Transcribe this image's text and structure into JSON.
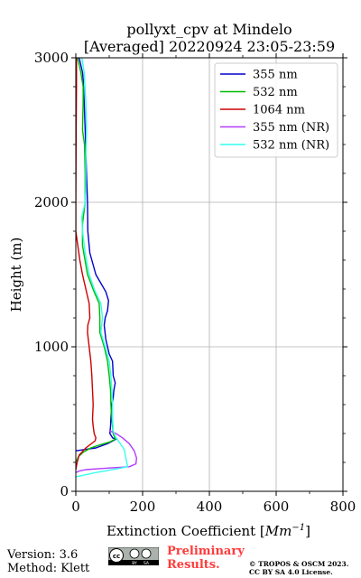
{
  "title_line1": "pollyxt_cpv at Mindelo",
  "title_line2": "[Averaged] 20220924 23:05-23:59",
  "footer": {
    "version": "Version: 3.6",
    "method": "Method: Klett",
    "cc_badge": "cc",
    "cc_by": "BY",
    "cc_sa": "SA",
    "preliminary_line1": "Preliminary",
    "preliminary_line2": "Results.",
    "preliminary_color": "#ff3b3b",
    "copyright_line1": "© TROPOS & OSCM 2023.",
    "copyright_line2": "CC BY SA 4.0 License."
  },
  "chart_data": {
    "type": "line",
    "xlabel_prefix": "Extinction Coefficient [",
    "xlabel_unit": "Mm",
    "xlabel_exp": "−1",
    "xlabel_suffix": "]",
    "ylabel": "Height (m)",
    "xlim": [
      0,
      800
    ],
    "ylim": [
      0,
      3000
    ],
    "xticks": [
      0,
      200,
      400,
      600,
      800
    ],
    "yticks": [
      0,
      1000,
      2000,
      3000
    ],
    "x_minor_step": 100,
    "y_minor_step": 200,
    "grid": true,
    "legend_position": "top-right",
    "series": [
      {
        "name": "355 nm",
        "color": "#0000cc",
        "points": [
          [
            10,
            3000
          ],
          [
            14,
            2960
          ],
          [
            20,
            2900
          ],
          [
            22,
            2850
          ],
          [
            23,
            2800
          ],
          [
            25,
            2700
          ],
          [
            28,
            2500
          ],
          [
            32,
            2200
          ],
          [
            35,
            2000
          ],
          [
            36,
            1800
          ],
          [
            42,
            1650
          ],
          [
            60,
            1500
          ],
          [
            90,
            1380
          ],
          [
            98,
            1320
          ],
          [
            95,
            1250
          ],
          [
            88,
            1200
          ],
          [
            85,
            1150
          ],
          [
            90,
            1050
          ],
          [
            100,
            950
          ],
          [
            110,
            900
          ],
          [
            112,
            800
          ],
          [
            118,
            750
          ],
          [
            114,
            700
          ],
          [
            112,
            650
          ],
          [
            108,
            600
          ],
          [
            105,
            500
          ],
          [
            104,
            450
          ],
          [
            102,
            400
          ],
          [
            110,
            370
          ],
          [
            120,
            360
          ],
          [
            95,
            330
          ],
          [
            60,
            300
          ],
          [
            30,
            290
          ],
          [
            0,
            280
          ]
        ]
      },
      {
        "name": "532 nm",
        "color": "#00bb00",
        "points": [
          [
            5,
            3000
          ],
          [
            15,
            2900
          ],
          [
            22,
            2800
          ],
          [
            22,
            2700
          ],
          [
            20,
            2500
          ],
          [
            26,
            2400
          ],
          [
            28,
            2200
          ],
          [
            28,
            2000
          ],
          [
            20,
            1850
          ],
          [
            20,
            1700
          ],
          [
            35,
            1500
          ],
          [
            55,
            1380
          ],
          [
            70,
            1300
          ],
          [
            72,
            1200
          ],
          [
            72,
            1100
          ],
          [
            85,
            1000
          ],
          [
            95,
            900
          ],
          [
            100,
            800
          ],
          [
            104,
            700
          ],
          [
            105,
            600
          ],
          [
            108,
            500
          ],
          [
            112,
            400
          ],
          [
            118,
            360
          ],
          [
            100,
            340
          ],
          [
            70,
            320
          ],
          [
            45,
            300
          ],
          [
            22,
            270
          ],
          [
            8,
            240
          ],
          [
            0,
            200
          ]
        ]
      },
      {
        "name": "1064 nm",
        "color": "#cc0000",
        "points": [
          [
            2,
            3000
          ],
          [
            2,
            2800
          ],
          [
            1,
            2500
          ],
          [
            0,
            2000
          ],
          [
            0,
            1800
          ],
          [
            6,
            1700
          ],
          [
            12,
            1600
          ],
          [
            20,
            1500
          ],
          [
            30,
            1400
          ],
          [
            40,
            1300
          ],
          [
            42,
            1200
          ],
          [
            36,
            1150
          ],
          [
            35,
            1100
          ],
          [
            40,
            1000
          ],
          [
            45,
            900
          ],
          [
            48,
            800
          ],
          [
            50,
            700
          ],
          [
            52,
            600
          ],
          [
            50,
            500
          ],
          [
            52,
            450
          ],
          [
            55,
            400
          ],
          [
            60,
            370
          ],
          [
            58,
            350
          ],
          [
            30,
            300
          ],
          [
            10,
            250
          ],
          [
            4,
            200
          ],
          [
            0,
            150
          ]
        ]
      },
      {
        "name": "355 nm (NR)",
        "color": "#b23cff",
        "points": [
          [
            100,
            420
          ],
          [
            120,
            400
          ],
          [
            140,
            370
          ],
          [
            160,
            330
          ],
          [
            175,
            280
          ],
          [
            182,
            230
          ],
          [
            180,
            190
          ],
          [
            160,
            170
          ],
          [
            90,
            160
          ],
          [
            30,
            150
          ],
          [
            10,
            140
          ],
          [
            0,
            130
          ]
        ]
      },
      {
        "name": "532 nm (NR)",
        "color": "#33ffee",
        "points": [
          [
            18,
            3000
          ],
          [
            25,
            2900
          ],
          [
            30,
            2700
          ],
          [
            32,
            2500
          ],
          [
            30,
            2300
          ],
          [
            30,
            2100
          ],
          [
            28,
            2000
          ],
          [
            18,
            1900
          ],
          [
            20,
            1800
          ],
          [
            28,
            1650
          ],
          [
            40,
            1500
          ],
          [
            55,
            1400
          ],
          [
            75,
            1300
          ],
          [
            80,
            1200
          ],
          [
            75,
            1100
          ],
          [
            88,
            1000
          ],
          [
            100,
            900
          ],
          [
            105,
            800
          ],
          [
            108,
            700
          ],
          [
            110,
            600
          ],
          [
            110,
            500
          ],
          [
            112,
            420
          ],
          [
            118,
            380
          ],
          [
            130,
            340
          ],
          [
            145,
            290
          ],
          [
            150,
            230
          ],
          [
            155,
            170
          ],
          [
            110,
            150
          ],
          [
            60,
            130
          ],
          [
            20,
            110
          ],
          [
            0,
            100
          ]
        ]
      }
    ]
  }
}
